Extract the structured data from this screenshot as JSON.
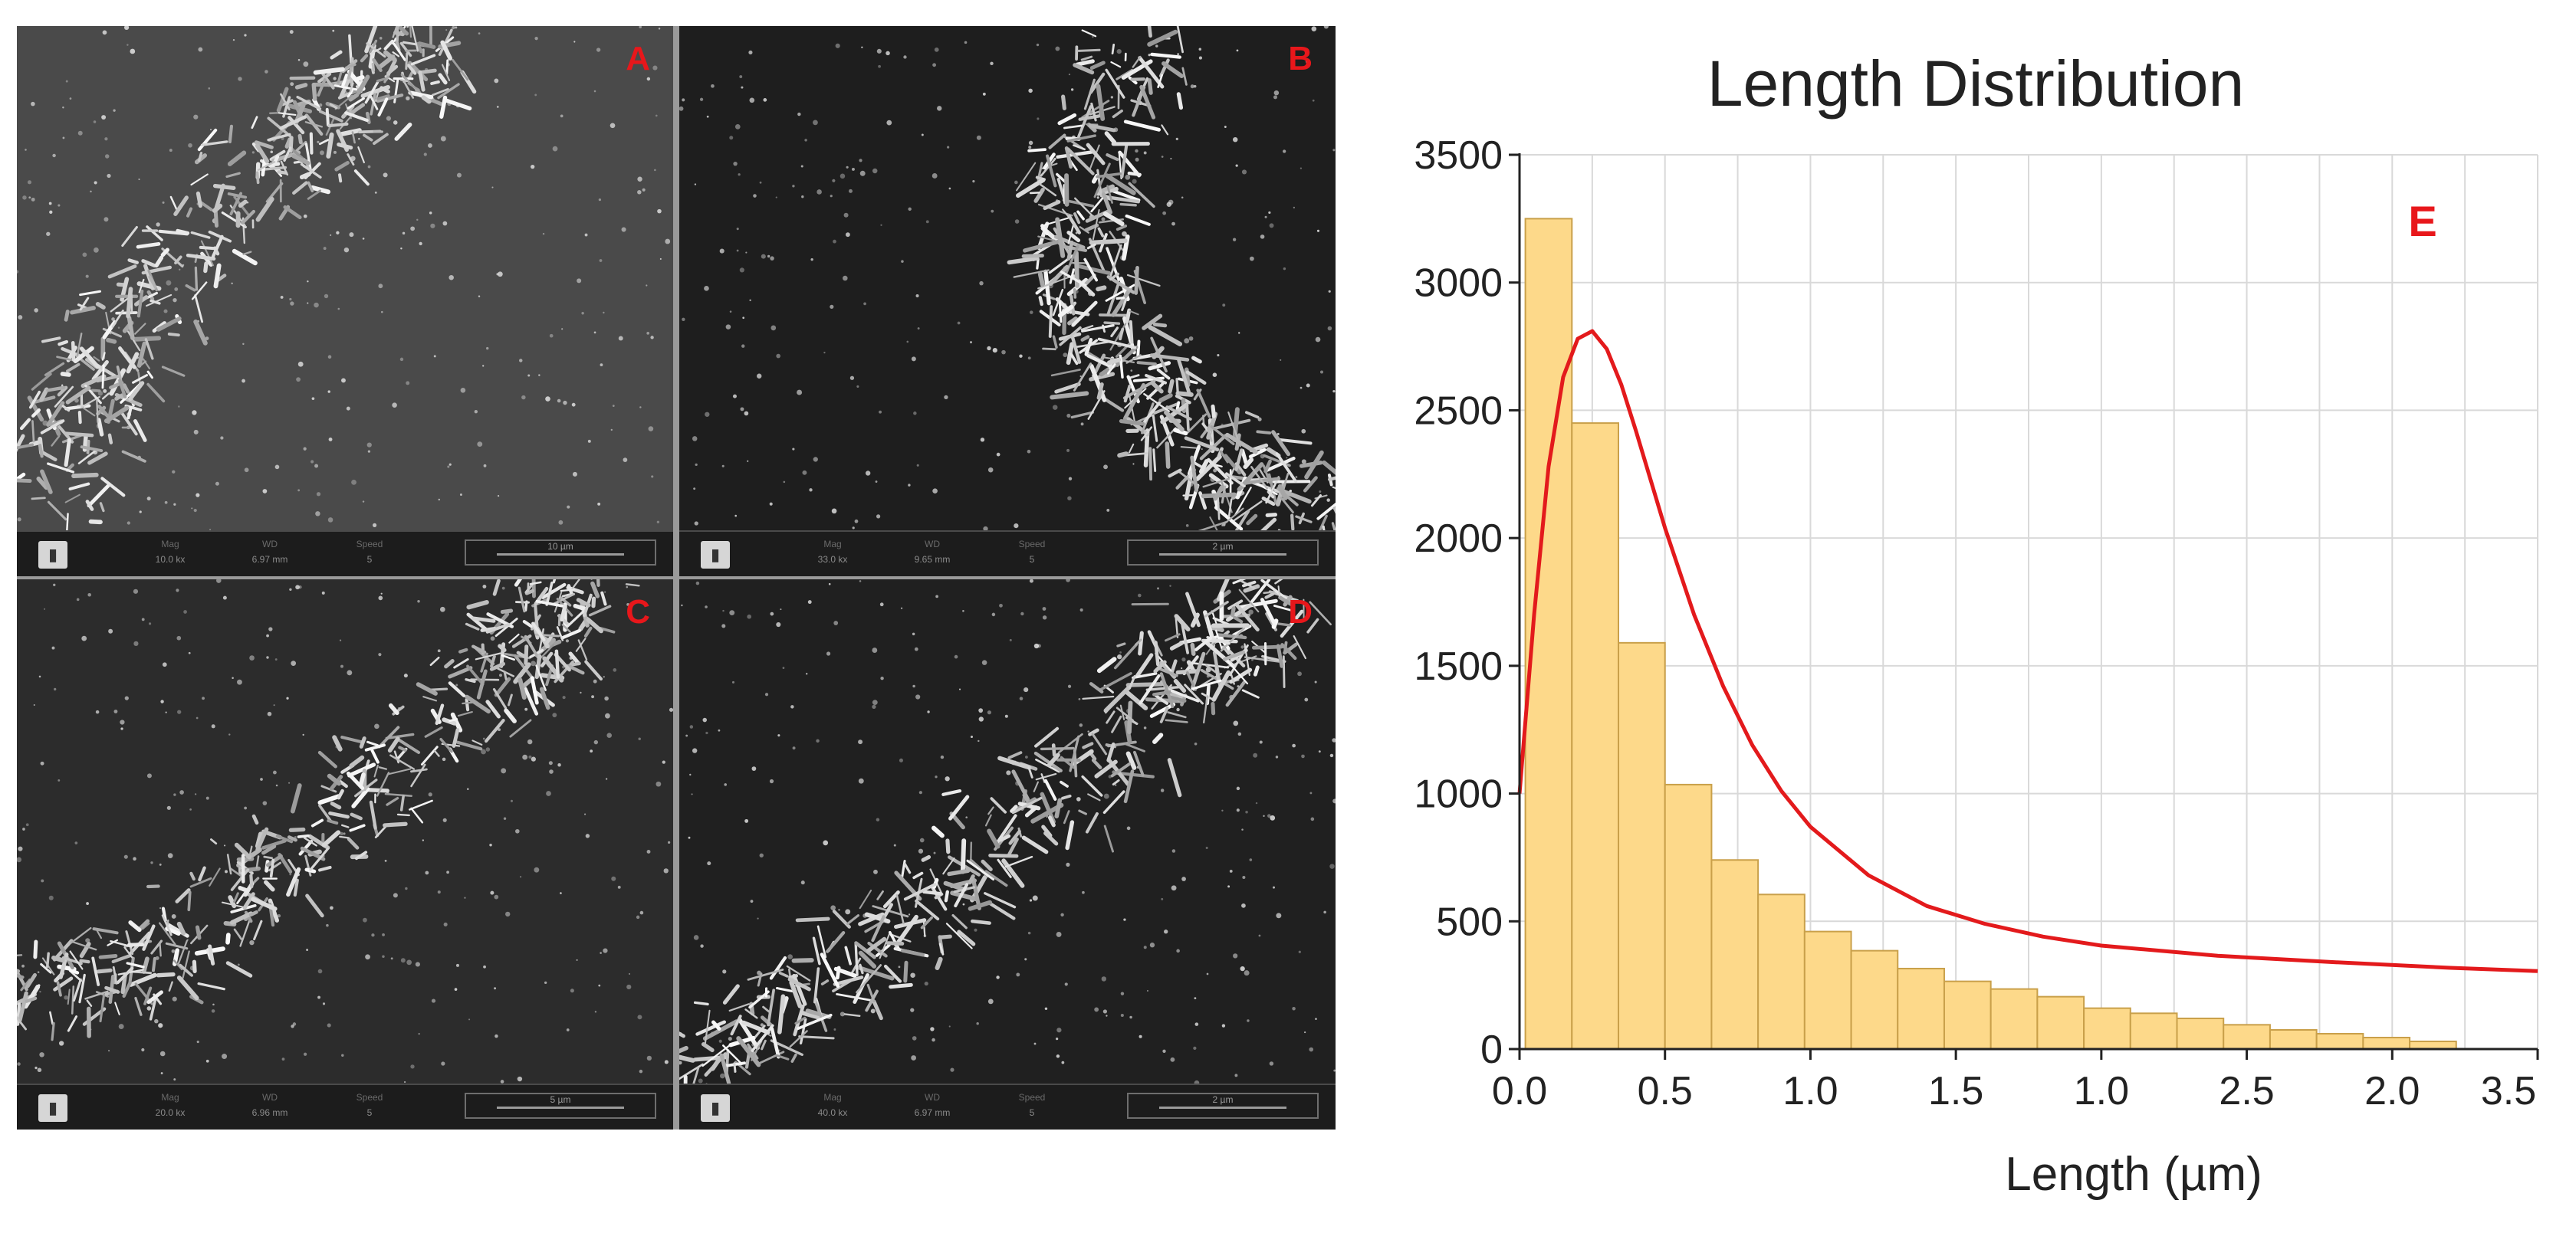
{
  "panels": [
    {
      "id": "A",
      "letter": "A",
      "mag_label": "Mag",
      "mag": "10.0 kx",
      "wd_label": "WD",
      "wd": "6.97 mm",
      "speed_label": "Speed",
      "speed": "5",
      "scale": "10 µm"
    },
    {
      "id": "B",
      "letter": "B",
      "mag_label": "Mag",
      "mag": "33.0 kx",
      "wd_label": "WD",
      "wd": "9.65 mm",
      "speed_label": "Speed",
      "speed": "5",
      "scale": "2 µm"
    },
    {
      "id": "C",
      "letter": "C",
      "mag_label": "Mag",
      "mag": "20.0 kx",
      "wd_label": "WD",
      "wd": "6.96 mm",
      "speed_label": "Speed",
      "speed": "5",
      "scale": "5 µm"
    },
    {
      "id": "D",
      "letter": "D",
      "mag_label": "Mag",
      "mag": "40.0 kx",
      "wd_label": "WD",
      "wd": "6.97 mm",
      "speed_label": "Speed",
      "speed": "5",
      "scale": "2 µm"
    }
  ],
  "chart_data": {
    "type": "bar",
    "title": "Length Distribution",
    "panel_label": "E",
    "xlabel": "Length (µm)",
    "ylabel": "",
    "ylim": [
      0,
      3500
    ],
    "yticks": [
      0,
      500,
      1000,
      1500,
      2000,
      2500,
      3000,
      3500
    ],
    "x_tick_labels": [
      "0.0",
      "0.5",
      "1.0",
      "1.5",
      "1.0",
      "2.5",
      "2.0",
      "3.5"
    ],
    "bin_width": 0.16,
    "x_start": 0.02,
    "values": [
      3250,
      2450,
      1590,
      1035,
      740,
      605,
      460,
      385,
      315,
      265,
      235,
      205,
      160,
      140,
      120,
      95,
      75,
      60,
      45,
      30
    ],
    "grid": true,
    "bar_color": "#fdd98a",
    "bar_edge": "#c9a04a",
    "fit_curve": {
      "type": "line",
      "color": "#e31a1c",
      "x": [
        0.0,
        0.05,
        0.1,
        0.15,
        0.2,
        0.25,
        0.3,
        0.35,
        0.4,
        0.5,
        0.6,
        0.7,
        0.8,
        0.9,
        1.0,
        1.2,
        1.4,
        1.6,
        1.8,
        2.0,
        2.4,
        2.8,
        3.2,
        3.5
      ],
      "y": [
        1000,
        1700,
        2280,
        2630,
        2780,
        2810,
        2740,
        2600,
        2420,
        2040,
        1700,
        1420,
        1190,
        1010,
        870,
        680,
        560,
        490,
        440,
        405,
        365,
        340,
        318,
        305
      ]
    },
    "colors": {
      "label_red": "#e8171b",
      "grid": "#d9d9d9",
      "axis": "#222222"
    }
  }
}
